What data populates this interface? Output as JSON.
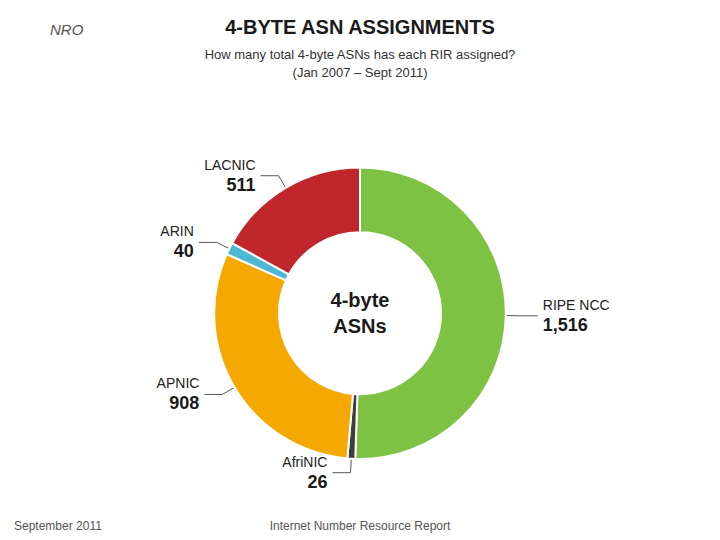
{
  "chart_data": {
    "type": "pie",
    "title": "4-BYTE ASN ASSIGNMENTS",
    "subtitle": [
      "How many total 4-byte ASNs has each RIR assigned?",
      "(Jan 2007 – Sept 2011)"
    ],
    "annotations": [
      "4-byte",
      "ASNs",
      "September 2011",
      "Internet Number Resource Report",
      "NRO"
    ],
    "categories": [
      "RIPE NCC",
      "AfriNIC",
      "APNIC",
      "ARIN",
      "LACNIC"
    ],
    "values": [
      1516,
      26,
      908,
      40,
      511
    ],
    "value_labels": [
      "1,516",
      "26",
      "908",
      "40",
      "511"
    ],
    "colors": [
      "#7dc242",
      "#3d3d3d",
      "#f5a800",
      "#4db8d4",
      "#c0272d"
    ],
    "data_labels": true
  }
}
